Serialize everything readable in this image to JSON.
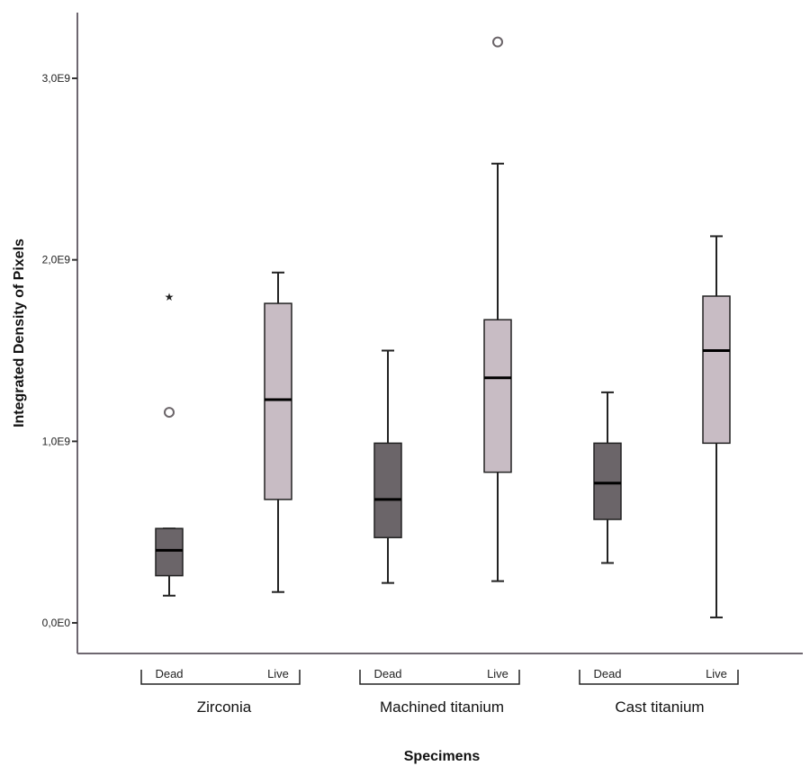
{
  "chart_data": {
    "type": "boxplot",
    "xlabel": "Specimens",
    "ylabel": "Integrated Density of Pixels",
    "ylim": [
      -150000000.0,
      3350000000.0
    ],
    "y_ticks": [
      {
        "value": 0,
        "label": "0,0E0"
      },
      {
        "value": 1000000000,
        "label": "1,0E9"
      },
      {
        "value": 2000000000,
        "label": "2,0E9"
      },
      {
        "value": 3000000000,
        "label": "3,0E9"
      }
    ],
    "groups": [
      "Zirconia",
      "Machined titanium",
      "Cast titanium"
    ],
    "categories": [
      "Dead",
      "Live",
      "Dead",
      "Live",
      "Dead",
      "Live"
    ],
    "boxes": [
      {
        "group": "Zirconia",
        "category": "Dead",
        "min": 150000000,
        "q1": 260000000,
        "median": 400000000,
        "q3": 520000000,
        "max": 520000000,
        "outliers": [
          {
            "value": 1160000000,
            "marker": "circle"
          },
          {
            "value": 1800000000,
            "marker": "star"
          }
        ],
        "fill": "#6b6569"
      },
      {
        "group": "Zirconia",
        "category": "Live",
        "min": 170000000,
        "q1": 680000000,
        "median": 1230000000,
        "q3": 1760000000,
        "max": 1930000000,
        "outliers": [],
        "fill": "#c8bcc4"
      },
      {
        "group": "Machined titanium",
        "category": "Dead",
        "min": 220000000,
        "q1": 470000000,
        "median": 680000000,
        "q3": 990000000,
        "max": 1500000000,
        "outliers": [],
        "fill": "#6b6569"
      },
      {
        "group": "Machined titanium",
        "category": "Live",
        "min": 230000000,
        "q1": 830000000,
        "median": 1350000000,
        "q3": 1670000000,
        "max": 2530000000,
        "outliers": [
          {
            "value": 3200000000,
            "marker": "circle"
          }
        ],
        "fill": "#c8bcc4"
      },
      {
        "group": "Cast titanium",
        "category": "Dead",
        "min": 330000000,
        "q1": 570000000,
        "median": 770000000,
        "q3": 990000000,
        "max": 1270000000,
        "outliers": [],
        "fill": "#6b6569"
      },
      {
        "group": "Cast titanium",
        "category": "Live",
        "min": 30000000,
        "q1": 990000000,
        "median": 1500000000,
        "q3": 1800000000,
        "max": 2130000000,
        "outliers": [],
        "fill": "#c8bcc4"
      }
    ],
    "colors": {
      "axis": "#6e6770",
      "dead_fill": "#6b6569",
      "live_fill": "#c8bcc4",
      "outline": "#222222"
    }
  }
}
